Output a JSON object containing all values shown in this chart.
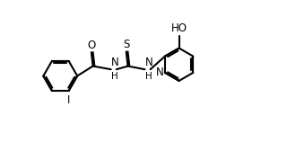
{
  "background_color": "#ffffff",
  "line_color": "#000000",
  "line_width": 1.5,
  "font_size": 8.5,
  "xlim": [
    0.0,
    8.8
  ],
  "ylim": [
    0.0,
    3.2
  ],
  "figsize": [
    3.2,
    1.58
  ],
  "dpi": 100
}
